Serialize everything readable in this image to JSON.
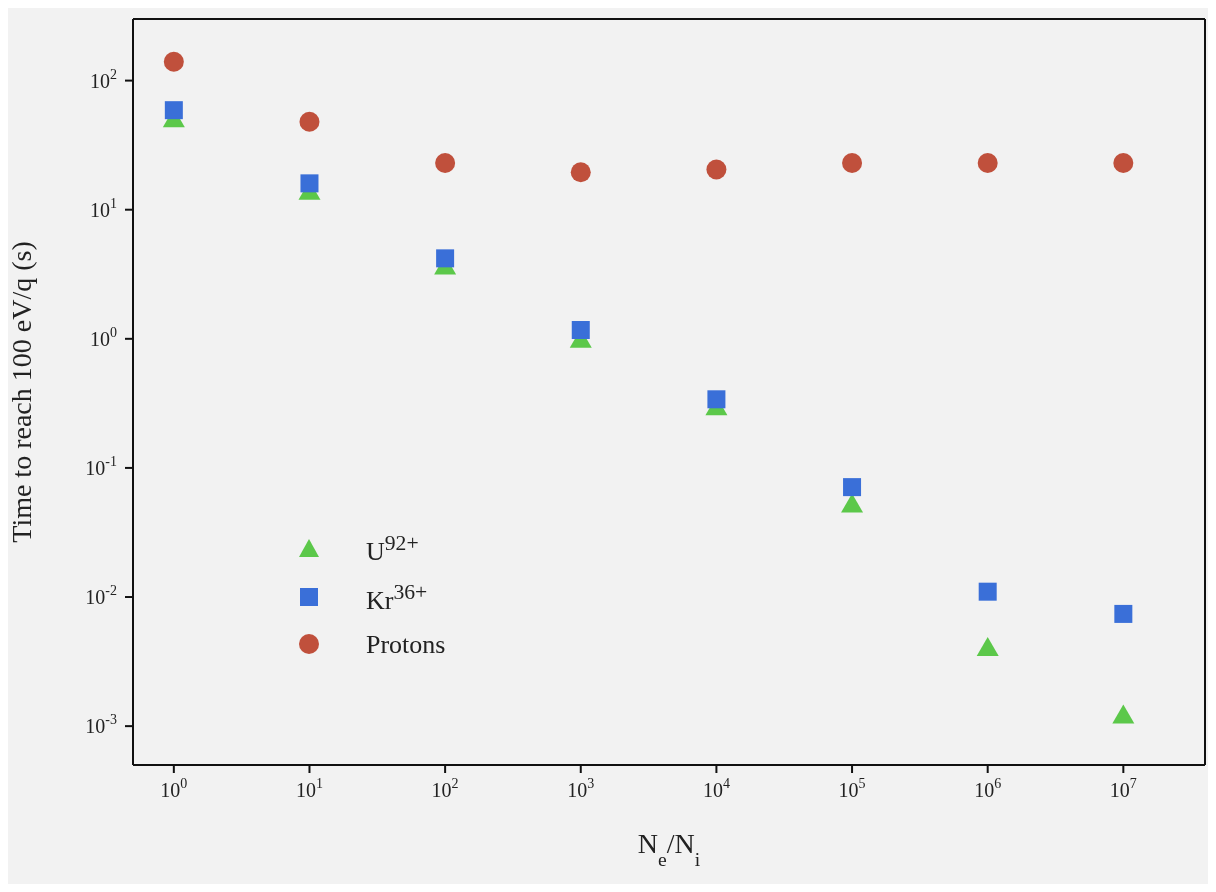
{
  "chart_data": {
    "type": "scatter",
    "xlabel": "N$_{e}$/N$_{i}$",
    "ylabel": "Time to reach 100 eV/q (s)",
    "x": [
      1,
      10,
      100,
      1000,
      10000,
      100000,
      1000000,
      10000000
    ],
    "series": [
      {
        "name": "U$^{92+}$",
        "color": "#5cc84a",
        "marker": "triangle",
        "values": [
          51,
          14,
          3.7,
          1.0,
          0.3,
          0.053,
          0.0041,
          0.00123
        ]
      },
      {
        "name": "Kr$^{36+}$",
        "color": "#3a6fd8",
        "marker": "square",
        "values": [
          59,
          16,
          4.2,
          1.17,
          0.34,
          0.071,
          0.011,
          0.0074
        ]
      },
      {
        "name": "Protons",
        "color": "#c0503c",
        "marker": "circle",
        "values": [
          140,
          48,
          23,
          19.5,
          20.5,
          23,
          23,
          23
        ]
      }
    ],
    "log": "xy",
    "xlim": [
      0.5,
      40000000
    ],
    "ylim": [
      0.0005,
      300
    ],
    "xticks": [
      {
        "value": 1,
        "label": "10$^{0}$"
      },
      {
        "value": 10,
        "label": "10$^{1}$"
      },
      {
        "value": 100,
        "label": "10$^{2}$"
      },
      {
        "value": 1000,
        "label": "10$^{3}$"
      },
      {
        "value": 10000,
        "label": "10$^{4}$"
      },
      {
        "value": 100000,
        "label": "10$^{5}$"
      },
      {
        "value": 1000000,
        "label": "10$^{6}$"
      },
      {
        "value": 10000000,
        "label": "10$^{7}$"
      }
    ],
    "yticks": [
      {
        "value": 0.001,
        "label": "10$^{-3}$"
      },
      {
        "value": 0.01,
        "label": "10$^{-2}$"
      },
      {
        "value": 0.1,
        "label": "10$^{-1}$"
      },
      {
        "value": 1,
        "label": "10$^{0}$"
      },
      {
        "value": 10,
        "label": "10$^{1}$"
      },
      {
        "value": 100,
        "label": "10$^{2}$"
      }
    ],
    "legend": "bottom left"
  }
}
